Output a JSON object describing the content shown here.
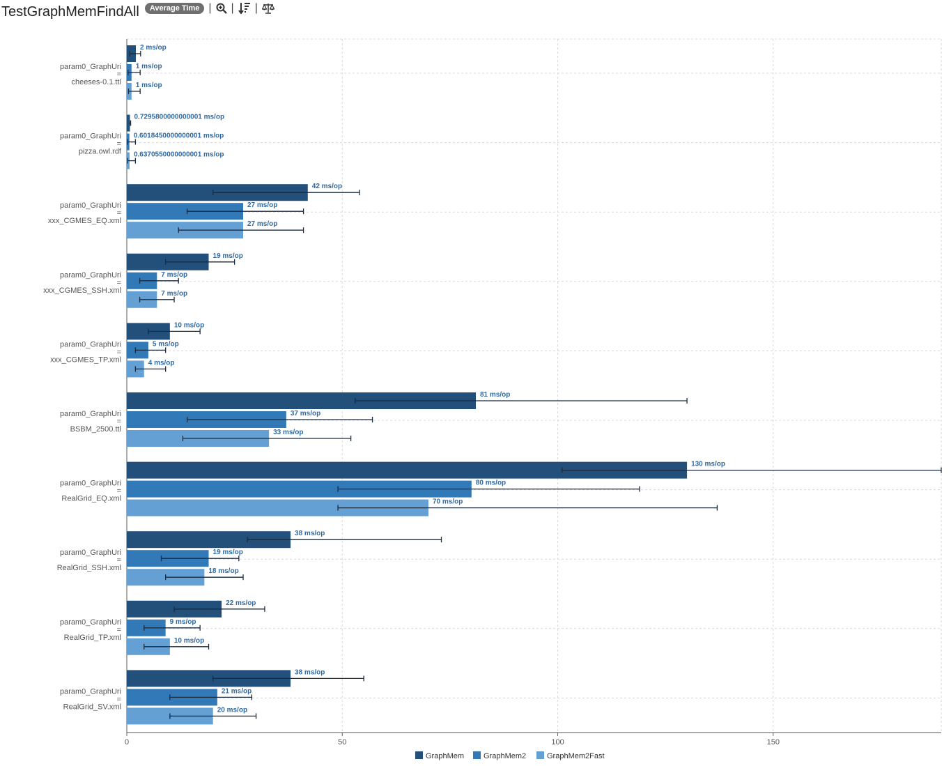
{
  "header": {
    "title": "TestGraphMemFindAll",
    "badge": "Average Time",
    "tools": [
      {
        "icon": "zoom-in-icon"
      },
      {
        "icon": "sort-descending-icon"
      },
      {
        "icon": "balance-scale-icon"
      }
    ]
  },
  "colors": {
    "GraphMem": "#23507a",
    "GraphMem2": "#3279b8",
    "GraphMem2Fast": "#64a0d4",
    "grid": "#d8d8d8",
    "error": "#1a2a3f",
    "label": "#2f6aa5"
  },
  "chart_data": {
    "type": "bar",
    "orientation": "horizontal",
    "xlim": [
      0,
      189
    ],
    "xticks": [
      0,
      50,
      100,
      150
    ],
    "unit": "ms/op",
    "legend": {
      "position": "bottom-center"
    },
    "categories": [
      {
        "param": "param0_GraphUri",
        "eq": "=",
        "value": "cheeses-0.1.ttl"
      },
      {
        "param": "param0_GraphUri",
        "eq": "=",
        "value": "pizza.owl.rdf"
      },
      {
        "param": "param0_GraphUri",
        "eq": "=",
        "value": "xxx_CGMES_EQ.xml"
      },
      {
        "param": "param0_GraphUri",
        "eq": "=",
        "value": "xxx_CGMES_SSH.xml"
      },
      {
        "param": "param0_GraphUri",
        "eq": "=",
        "value": "xxx_CGMES_TP.xml"
      },
      {
        "param": "param0_GraphUri",
        "eq": "=",
        "value": "BSBM_2500.ttl"
      },
      {
        "param": "param0_GraphUri",
        "eq": "=",
        "value": "RealGrid_EQ.xml"
      },
      {
        "param": "param0_GraphUri",
        "eq": "=",
        "value": "RealGrid_SSH.xml"
      },
      {
        "param": "param0_GraphUri",
        "eq": "=",
        "value": "RealGrid_TP.xml"
      },
      {
        "param": "param0_GraphUri",
        "eq": "=",
        "value": "RealGrid_SV.xml"
      }
    ],
    "series": [
      {
        "name": "GraphMem",
        "values": [
          2.1,
          0.7295800000000001,
          42,
          19,
          10,
          81,
          130,
          38,
          22,
          38
        ],
        "labels": [
          "2 ms/op",
          "0.7295800000000001 ms/op",
          "42 ms/op",
          "19 ms/op",
          "10 ms/op",
          "81 ms/op",
          "130 ms/op",
          "38 ms/op",
          "22 ms/op",
          "38 ms/op"
        ],
        "err": [
          [
            0.7,
            3.2
          ],
          [
            0.6,
            0.9
          ],
          [
            20,
            54
          ],
          [
            9,
            25
          ],
          [
            5,
            17
          ],
          [
            53,
            130
          ],
          [
            101,
            189
          ],
          [
            28,
            73
          ],
          [
            11,
            32
          ],
          [
            20,
            55
          ]
        ]
      },
      {
        "name": "GraphMem2",
        "values": [
          1.1,
          0.6018450000000001,
          27,
          7,
          5,
          37,
          80,
          19,
          9,
          21
        ],
        "labels": [
          "1 ms/op",
          "0.6018450000000001 ms/op",
          "27 ms/op",
          "7 ms/op",
          "5 ms/op",
          "37 ms/op",
          "80 ms/op",
          "19 ms/op",
          "9 ms/op",
          "21 ms/op"
        ],
        "err": [
          [
            0.3,
            3.1
          ],
          [
            0.2,
            2.0
          ],
          [
            14,
            41
          ],
          [
            3,
            12
          ],
          [
            2,
            9
          ],
          [
            14,
            57
          ],
          [
            49,
            119
          ],
          [
            8,
            26
          ],
          [
            4,
            17
          ],
          [
            10,
            29
          ]
        ]
      },
      {
        "name": "GraphMem2Fast",
        "values": [
          1.1,
          0.6370550000000001,
          27,
          7,
          4,
          33,
          70,
          18,
          10,
          20
        ],
        "labels": [
          "1 ms/op",
          "0.6370550000000001 ms/op",
          "27 ms/op",
          "7 ms/op",
          "4 ms/op",
          "33 ms/op",
          "70 ms/op",
          "18 ms/op",
          "10 ms/op",
          "20 ms/op"
        ],
        "err": [
          [
            0.4,
            3.1
          ],
          [
            0.2,
            2.0
          ],
          [
            12,
            41
          ],
          [
            3,
            11
          ],
          [
            2,
            9
          ],
          [
            13,
            52
          ],
          [
            49,
            137
          ],
          [
            9,
            27
          ],
          [
            4,
            19
          ],
          [
            10,
            30
          ]
        ]
      }
    ]
  }
}
